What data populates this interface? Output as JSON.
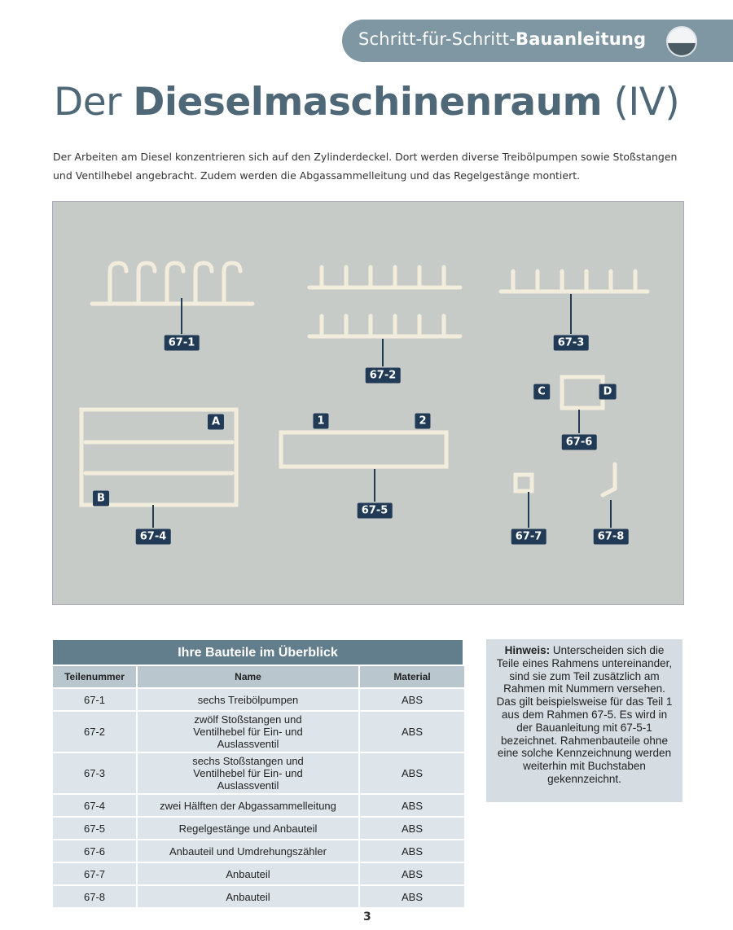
{
  "header": {
    "series_light": "Schritt-für-Schritt-",
    "series_bold": "Bauanleitung"
  },
  "title": {
    "light": "Der ",
    "bold": "Dieselmaschinenraum",
    "suffix": " (IV)"
  },
  "intro": "Der Arbeiten am Diesel konzentrieren sich auf den Zylinderdeckel. Dort werden diverse Treibölpumpen sowie Stoßstangen und Ventilhebel angebracht. Zudem werden die Abgassammelleitung und das Regelgestänge montiert.",
  "figure": {
    "labels": [
      "67-1",
      "67-2",
      "67-3",
      "67-4",
      "67-5",
      "67-6",
      "67-7",
      "67-8",
      "A",
      "B",
      "C",
      "D",
      "1",
      "2"
    ]
  },
  "table": {
    "title": "Ihre Bauteile im Überblick",
    "columns": [
      "Teilenummer",
      "Name",
      "Material"
    ],
    "rows": [
      [
        "67-1",
        "sechs Treibölpumpen",
        "ABS"
      ],
      [
        "67-2",
        "zwölf Stoßstangen und Ventilhebel für Ein- und Auslassventil",
        "ABS"
      ],
      [
        "67-3",
        "sechs Stoßstangen und Ventilhebel für Ein- und Auslassventil",
        "ABS"
      ],
      [
        "67-4",
        "zwei Hälften der Abgassammelleitung",
        "ABS"
      ],
      [
        "67-5",
        "Regelgestänge und Anbauteil",
        "ABS"
      ],
      [
        "67-6",
        "Anbauteil und Umdrehungszähler",
        "ABS"
      ],
      [
        "67-7",
        "Anbauteil",
        "ABS"
      ],
      [
        "67-8",
        "Anbauteil",
        "ABS"
      ]
    ]
  },
  "hint": {
    "label": "Hinweis:",
    "text": " Unterscheiden sich die Teile eines Rahmens untereinander, sind sie zum Teil zusätzlich am Rahmen mit Nummern versehen. Das gilt beispielsweise für das Teil 1 aus dem Rahmen 67-5. Es wird in der Bauanleitung mit 67-5-1 bezeichnet. Rahmenbauteile ohne eine solche Kennzeichnung werden weiterhin mit Buchstaben gekennzeichnt."
  },
  "page_number": "3"
}
